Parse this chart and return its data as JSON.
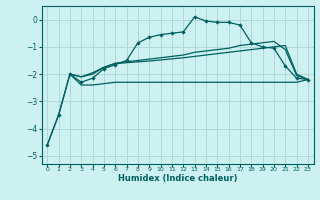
{
  "xlabel": "Humidex (Indice chaleur)",
  "bg_color": "#cdf0f0",
  "grid_color": "#b0d8d8",
  "line_color": "#006060",
  "xlim": [
    -0.5,
    23.5
  ],
  "ylim": [
    -5.3,
    0.5
  ],
  "yticks": [
    0,
    -1,
    -2,
    -3,
    -4,
    -5
  ],
  "xticks": [
    0,
    1,
    2,
    3,
    4,
    5,
    6,
    7,
    8,
    9,
    10,
    11,
    12,
    13,
    14,
    15,
    16,
    17,
    18,
    19,
    20,
    21,
    22,
    23
  ],
  "line1_x": [
    0,
    1,
    2,
    3,
    4,
    5,
    6,
    7,
    8,
    9,
    10,
    11,
    12,
    13,
    14,
    15,
    16,
    17,
    18,
    19,
    20,
    21,
    22,
    23
  ],
  "line1_y": [
    -4.6,
    -3.5,
    -2.0,
    -2.3,
    -2.15,
    -1.8,
    -1.65,
    -1.5,
    -0.85,
    -0.65,
    -0.55,
    -0.5,
    -0.45,
    0.1,
    -0.05,
    -0.1,
    -0.1,
    -0.2,
    -0.85,
    -1.0,
    -1.05,
    -1.7,
    -2.15,
    -2.2
  ],
  "line2_x": [
    0,
    1,
    2,
    3,
    4,
    5,
    6,
    7,
    8,
    9,
    10,
    11,
    12,
    13,
    14,
    15,
    16,
    17,
    18,
    19,
    20,
    21,
    22,
    23
  ],
  "line2_y": [
    -4.6,
    -3.5,
    -2.0,
    -2.1,
    -2.0,
    -1.75,
    -1.6,
    -1.55,
    -1.5,
    -1.45,
    -1.4,
    -1.35,
    -1.3,
    -1.2,
    -1.15,
    -1.1,
    -1.05,
    -0.95,
    -0.9,
    -0.85,
    -0.8,
    -1.1,
    -2.05,
    -2.2
  ],
  "line3_x": [
    2,
    3,
    4,
    5,
    6,
    7,
    8,
    9,
    10,
    11,
    12,
    13,
    14,
    15,
    16,
    17,
    18,
    19,
    20,
    21,
    22,
    23
  ],
  "line3_y": [
    -2.0,
    -2.1,
    -1.95,
    -1.75,
    -1.62,
    -1.58,
    -1.55,
    -1.52,
    -1.48,
    -1.44,
    -1.4,
    -1.35,
    -1.3,
    -1.25,
    -1.2,
    -1.15,
    -1.1,
    -1.05,
    -1.0,
    -0.95,
    -2.0,
    -2.2
  ],
  "line4_x": [
    2,
    3,
    4,
    5,
    6,
    7,
    8,
    9,
    10,
    11,
    12,
    13,
    14,
    15,
    16,
    17,
    18,
    19,
    20,
    21,
    22,
    23
  ],
  "line4_y": [
    -2.0,
    -2.4,
    -2.4,
    -2.35,
    -2.3,
    -2.3,
    -2.3,
    -2.3,
    -2.3,
    -2.3,
    -2.3,
    -2.3,
    -2.3,
    -2.3,
    -2.3,
    -2.3,
    -2.3,
    -2.3,
    -2.3,
    -2.3,
    -2.3,
    -2.2
  ]
}
